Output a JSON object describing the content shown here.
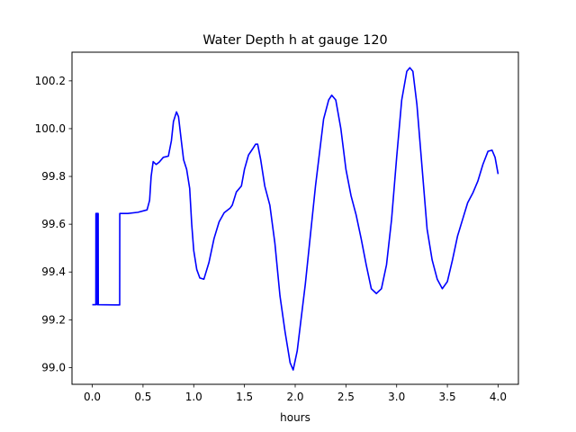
{
  "chart_data": {
    "type": "line",
    "title": "Water Depth h at gauge 120",
    "xlabel": "hours",
    "ylabel": "",
    "xlim": [
      -0.2,
      4.2
    ],
    "ylim": [
      98.93,
      100.32
    ],
    "xticks": [
      0.0,
      0.5,
      1.0,
      1.5,
      2.0,
      2.5,
      3.0,
      3.5,
      4.0
    ],
    "xtick_labels": [
      "0.0",
      "0.5",
      "1.0",
      "1.5",
      "2.0",
      "2.5",
      "3.0",
      "3.5",
      "4.0"
    ],
    "yticks": [
      99.0,
      99.2,
      99.4,
      99.6,
      99.8,
      100.0,
      100.2
    ],
    "ytick_labels": [
      "99.0",
      "99.2",
      "99.4",
      "99.6",
      "99.8",
      "100.0",
      "100.2"
    ],
    "grid": false,
    "series": [
      {
        "color": "#0000ff",
        "points": [
          [
            0.0,
            99.263
          ],
          [
            0.035,
            99.263
          ],
          [
            0.036,
            99.645
          ],
          [
            0.048,
            99.645
          ],
          [
            0.049,
            99.263
          ],
          [
            0.05,
            99.645
          ],
          [
            0.058,
            99.645
          ],
          [
            0.059,
            99.263
          ],
          [
            0.27,
            99.262
          ],
          [
            0.271,
            99.645
          ],
          [
            0.35,
            99.645
          ],
          [
            0.45,
            99.65
          ],
          [
            0.54,
            99.66
          ],
          [
            0.565,
            99.7
          ],
          [
            0.58,
            99.8
          ],
          [
            0.6,
            99.862
          ],
          [
            0.63,
            99.85
          ],
          [
            0.66,
            99.86
          ],
          [
            0.7,
            99.88
          ],
          [
            0.75,
            99.885
          ],
          [
            0.78,
            99.95
          ],
          [
            0.8,
            100.03
          ],
          [
            0.83,
            100.07
          ],
          [
            0.85,
            100.05
          ],
          [
            0.88,
            99.94
          ],
          [
            0.9,
            99.87
          ],
          [
            0.93,
            99.83
          ],
          [
            0.96,
            99.75
          ],
          [
            0.98,
            99.6
          ],
          [
            1.0,
            99.49
          ],
          [
            1.03,
            99.41
          ],
          [
            1.06,
            99.375
          ],
          [
            1.1,
            99.37
          ],
          [
            1.15,
            99.44
          ],
          [
            1.2,
            99.54
          ],
          [
            1.25,
            99.61
          ],
          [
            1.3,
            99.648
          ],
          [
            1.36,
            99.668
          ],
          [
            1.38,
            99.68
          ],
          [
            1.42,
            99.735
          ],
          [
            1.47,
            99.76
          ],
          [
            1.5,
            99.83
          ],
          [
            1.54,
            99.89
          ],
          [
            1.58,
            99.915
          ],
          [
            1.61,
            99.935
          ],
          [
            1.63,
            99.935
          ],
          [
            1.66,
            99.87
          ],
          [
            1.7,
            99.76
          ],
          [
            1.75,
            99.68
          ],
          [
            1.8,
            99.52
          ],
          [
            1.85,
            99.3
          ],
          [
            1.9,
            99.15
          ],
          [
            1.95,
            99.02
          ],
          [
            1.98,
            98.99
          ],
          [
            2.02,
            99.07
          ],
          [
            2.1,
            99.35
          ],
          [
            2.2,
            99.76
          ],
          [
            2.28,
            100.04
          ],
          [
            2.33,
            100.12
          ],
          [
            2.36,
            100.14
          ],
          [
            2.4,
            100.12
          ],
          [
            2.45,
            100.0
          ],
          [
            2.5,
            99.83
          ],
          [
            2.55,
            99.72
          ],
          [
            2.6,
            99.64
          ],
          [
            2.65,
            99.54
          ],
          [
            2.7,
            99.43
          ],
          [
            2.75,
            99.33
          ],
          [
            2.8,
            99.31
          ],
          [
            2.85,
            99.33
          ],
          [
            2.9,
            99.43
          ],
          [
            2.95,
            99.62
          ],
          [
            3.0,
            99.88
          ],
          [
            3.05,
            100.12
          ],
          [
            3.1,
            100.24
          ],
          [
            3.13,
            100.255
          ],
          [
            3.16,
            100.24
          ],
          [
            3.2,
            100.1
          ],
          [
            3.25,
            99.84
          ],
          [
            3.3,
            99.58
          ],
          [
            3.35,
            99.45
          ],
          [
            3.4,
            99.37
          ],
          [
            3.45,
            99.33
          ],
          [
            3.5,
            99.36
          ],
          [
            3.55,
            99.45
          ],
          [
            3.6,
            99.55
          ],
          [
            3.65,
            99.62
          ],
          [
            3.7,
            99.69
          ],
          [
            3.75,
            99.73
          ],
          [
            3.8,
            99.78
          ],
          [
            3.85,
            99.85
          ],
          [
            3.9,
            99.905
          ],
          [
            3.94,
            99.91
          ],
          [
            3.97,
            99.88
          ],
          [
            4.0,
            99.81
          ]
        ]
      }
    ]
  }
}
